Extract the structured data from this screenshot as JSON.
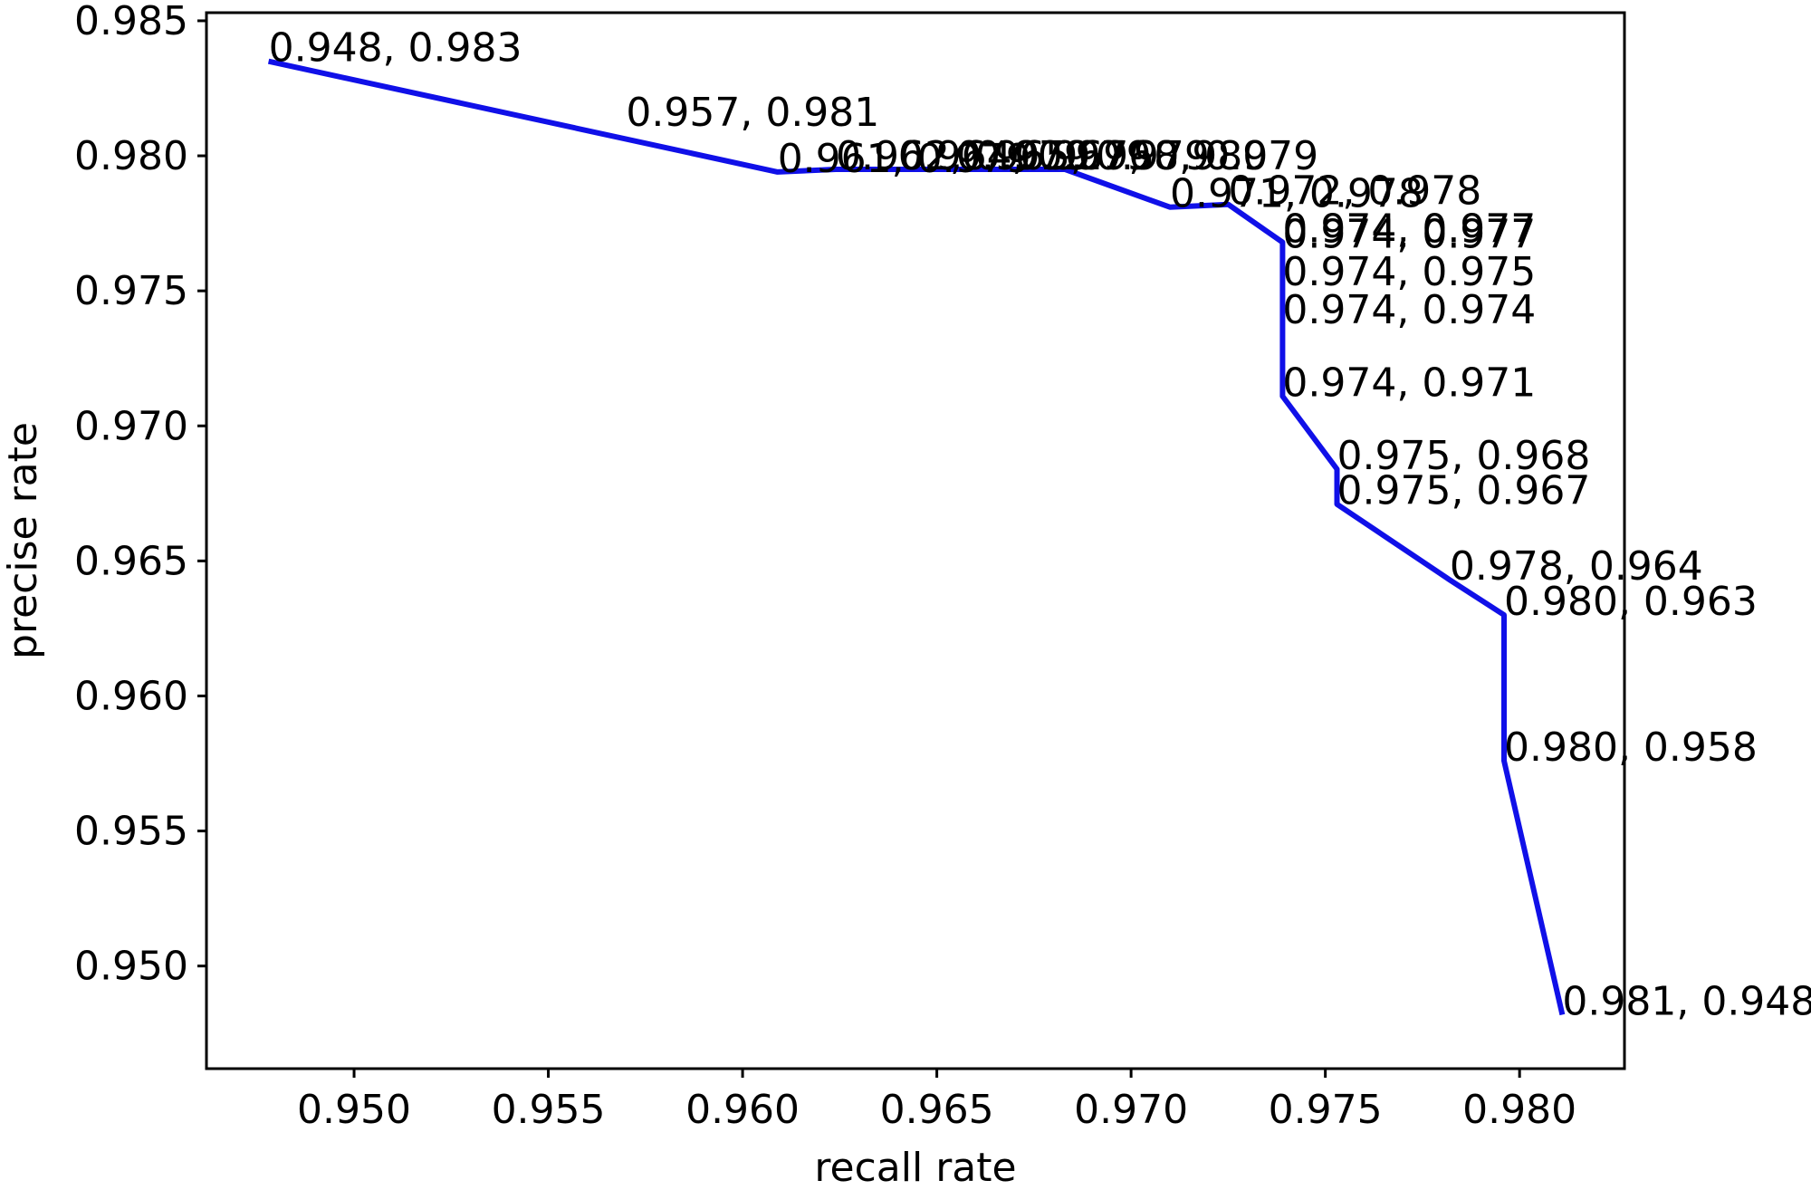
{
  "chart_data": {
    "type": "line",
    "title": "",
    "xlabel": "recall rate",
    "ylabel": "precise rate",
    "xlim": [
      0.9462,
      0.9827
    ],
    "ylim": [
      0.9462,
      0.9853
    ],
    "x_ticks": [
      "0.950",
      "0.955",
      "0.960",
      "0.965",
      "0.970",
      "0.975",
      "0.980"
    ],
    "y_ticks": [
      "0.950",
      "0.955",
      "0.960",
      "0.965",
      "0.970",
      "0.975",
      "0.980",
      "0.985"
    ],
    "grid": false,
    "line_color": "#1010e8",
    "series": [
      {
        "points": [
          {
            "x": 0.9478,
            "y": 0.9835,
            "label": "0.948, 0.983"
          },
          {
            "x": 0.9609,
            "y": 0.9794,
            "label": "0.961, 0.979"
          },
          {
            "x": 0.9624,
            "y": 0.9795,
            "label": "0.962, 0.979"
          },
          {
            "x": 0.964,
            "y": 0.9795,
            "label": "0.964, 0.979"
          },
          {
            "x": 0.9655,
            "y": 0.9795,
            "label": "0.965, 0.979"
          },
          {
            "x": 0.967,
            "y": 0.9795,
            "label": "0.967, 0.980"
          },
          {
            "x": 0.9683,
            "y": 0.9795,
            "label": "0.968, 0.979"
          },
          {
            "x": 0.971,
            "y": 0.9781,
            "label": "0.971, 0.978"
          },
          {
            "x": 0.9725,
            "y": 0.9782,
            "label": "0.972, 0.978"
          },
          {
            "x": 0.9739,
            "y": 0.9768,
            "label": "0.974, 0.977"
          },
          {
            "x": 0.9739,
            "y": 0.9766,
            "label": "0.974, 0.977"
          },
          {
            "x": 0.9739,
            "y": 0.9752,
            "label": "0.974, 0.975"
          },
          {
            "x": 0.9739,
            "y": 0.9738,
            "label": "0.974, 0.974"
          },
          {
            "x": 0.9739,
            "y": 0.9711,
            "label": "0.974, 0.971"
          },
          {
            "x": 0.9753,
            "y": 0.9684,
            "label": "0.975, 0.968"
          },
          {
            "x": 0.9753,
            "y": 0.9671,
            "label": "0.975, 0.967"
          },
          {
            "x": 0.9782,
            "y": 0.9643,
            "label": "0.978, 0.964"
          },
          {
            "x": 0.9796,
            "y": 0.963,
            "label": "0.980, 0.963"
          },
          {
            "x": 0.9796,
            "y": 0.9576,
            "label": "0.980, 0.958"
          },
          {
            "x": 0.9811,
            "y": 0.9482,
            "label": "0.981, 0.948"
          }
        ]
      }
    ],
    "extra_labels": [
      {
        "x": 0.957,
        "y": 0.9811,
        "label": "0.957, 0.981"
      }
    ]
  }
}
